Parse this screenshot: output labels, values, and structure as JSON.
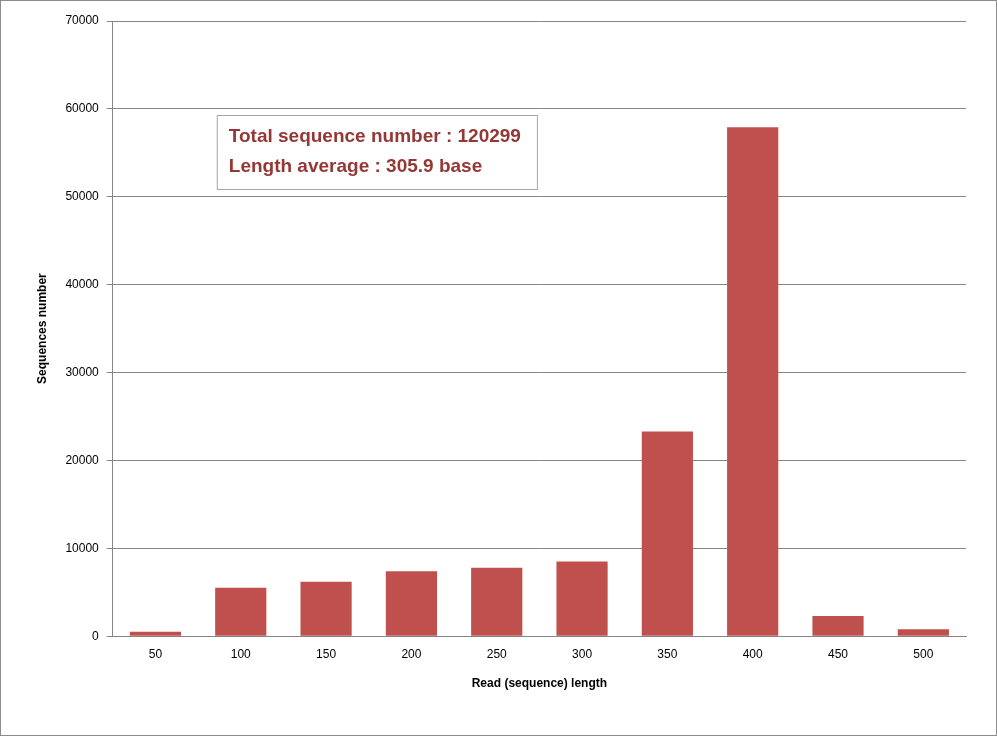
{
  "chart_data": {
    "type": "bar",
    "x_label": "Read (sequence) length",
    "y_label": "Sequences number",
    "categories": [
      "50",
      "100",
      "150",
      "200",
      "250",
      "300",
      "350",
      "400",
      "450",
      "500"
    ],
    "values": [
      500,
      5500,
      6200,
      7400,
      7800,
      8500,
      23300,
      57900,
      2300,
      800
    ],
    "color": "#c0504d",
    "ylim": [
      0,
      70000
    ],
    "yticks": [
      0,
      10000,
      20000,
      30000,
      40000,
      50000,
      60000,
      70000
    ],
    "grid": true,
    "annotations": [
      "Total sequence number : 120299",
      "Length average : 305.9 base"
    ]
  }
}
